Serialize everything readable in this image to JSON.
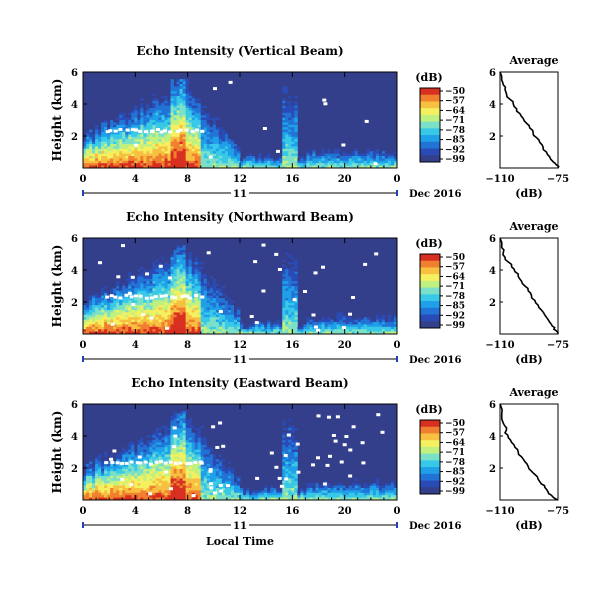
{
  "chart_data": [
    {
      "type": "heatmap",
      "title": "Echo Intensity (Vertical Beam)",
      "ylabel": "Height (km)",
      "yticks": [
        "2",
        "4",
        "6"
      ],
      "xticks": [
        "0",
        "4",
        "8",
        "12",
        "16",
        "20",
        "0"
      ],
      "xlim": [
        0,
        24
      ],
      "ylim": [
        0,
        6
      ],
      "day_label": "11",
      "date_label": "Dec 2016",
      "colorbar": {
        "unit": "(dB)",
        "ticks": [
          "-50",
          "-57",
          "-64",
          "-71",
          "-78",
          "-85",
          "-92",
          "-99"
        ]
      },
      "profile": {
        "title": "Average",
        "xlabel": "(dB)",
        "xticks": [
          "-110",
          "-75"
        ],
        "yticks": [
          "2",
          "4",
          "6"
        ],
        "xlim": [
          -110,
          -75
        ],
        "ylim": [
          0,
          6
        ],
        "x": [
          -110,
          -109,
          -108,
          -107,
          -106,
          -104,
          -102,
          -100,
          -98,
          -96,
          -94,
          -92,
          -90,
          -88,
          -86,
          -84,
          -82,
          -80,
          -78,
          -76,
          -75
        ],
        "y": [
          6.0,
          5.5,
          5.2,
          4.9,
          4.6,
          4.3,
          4.0,
          3.7,
          3.4,
          3.1,
          2.8,
          2.5,
          2.2,
          1.9,
          1.6,
          1.3,
          1.0,
          0.7,
          0.4,
          0.2,
          0.0
        ]
      }
    },
    {
      "type": "heatmap",
      "title": "Echo Intensity (Northward Beam)",
      "ylabel": "Height (km)",
      "yticks": [
        "2",
        "4",
        "6"
      ],
      "xticks": [
        "0",
        "4",
        "8",
        "12",
        "16",
        "20",
        "0"
      ],
      "xlim": [
        0,
        24
      ],
      "ylim": [
        0,
        6
      ],
      "day_label": "11",
      "date_label": "Dec 2016",
      "colorbar": {
        "unit": "(dB)",
        "ticks": [
          "-50",
          "-57",
          "-64",
          "-71",
          "-78",
          "-85",
          "-92",
          "-99"
        ]
      },
      "profile": {
        "title": "Average",
        "xlabel": "(dB)",
        "xticks": [
          "-110",
          "-75"
        ],
        "yticks": [
          "2",
          "4",
          "6"
        ],
        "xlim": [
          -110,
          -75
        ],
        "ylim": [
          0,
          6
        ],
        "x": [
          -110,
          -109,
          -108,
          -107,
          -105,
          -103,
          -101,
          -99,
          -97,
          -95,
          -93,
          -91,
          -89,
          -87,
          -85,
          -83,
          -81,
          -79,
          -77,
          -76,
          -75
        ],
        "y": [
          6.0,
          5.4,
          5.1,
          4.8,
          4.5,
          4.2,
          3.9,
          3.6,
          3.3,
          3.0,
          2.7,
          2.4,
          2.1,
          1.8,
          1.5,
          1.2,
          0.9,
          0.6,
          0.4,
          0.2,
          0.0
        ]
      }
    },
    {
      "type": "heatmap",
      "title": "Echo Intensity (Eastward Beam)",
      "ylabel": "Height (km)",
      "yticks": [
        "2",
        "4",
        "6"
      ],
      "xticks": [
        "0",
        "4",
        "8",
        "12",
        "16",
        "20",
        "0"
      ],
      "xlim": [
        0,
        24
      ],
      "ylim": [
        0,
        6
      ],
      "day_label": "11",
      "date_label": "Dec 2016",
      "xlabel": "Local Time",
      "colorbar": {
        "unit": "(dB)",
        "ticks": [
          "-50",
          "-57",
          "-64",
          "-71",
          "-78",
          "-85",
          "-92",
          "-99"
        ]
      },
      "profile": {
        "title": "Average",
        "xlabel": "(dB)",
        "xticks": [
          "-110",
          "-75"
        ],
        "yticks": [
          "2",
          "4",
          "6"
        ],
        "xlim": [
          -110,
          -75
        ],
        "ylim": [
          0,
          6
        ],
        "x": [
          -110,
          -109,
          -108,
          -106,
          -107,
          -105,
          -103,
          -101,
          -99,
          -97,
          -95,
          -93,
          -91,
          -89,
          -87,
          -85,
          -83,
          -81,
          -79,
          -77,
          -75
        ],
        "y": [
          6.0,
          5.3,
          4.8,
          4.5,
          4.2,
          3.9,
          3.6,
          3.3,
          3.0,
          2.7,
          2.4,
          2.1,
          1.8,
          1.6,
          1.3,
          1.0,
          0.8,
          0.5,
          0.3,
          0.1,
          0.0
        ]
      }
    }
  ],
  "colors": {
    "background": "#343f8c",
    "scale": [
      "#343f8c",
      "#2a4bb5",
      "#2273d6",
      "#1fa0e8",
      "#38c8e8",
      "#7be0c8",
      "#c0f080",
      "#f5f060",
      "#f8c040",
      "#f08030",
      "#d83020"
    ]
  }
}
